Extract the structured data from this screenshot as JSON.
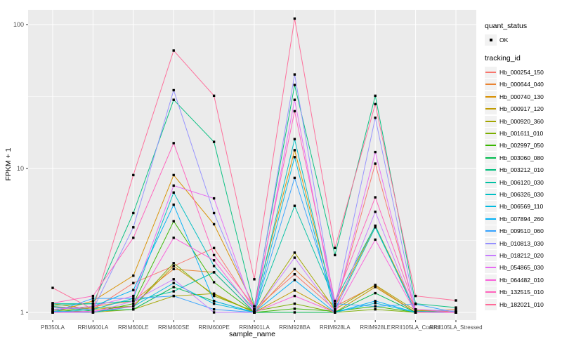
{
  "figure": {
    "background": "#FFFFFF",
    "panel_bg": "#EBEBEB",
    "grid_color": "#FFFFFF",
    "tick_label_color": "#4D4D4D",
    "point_color": "#000000",
    "legend_key_bg": "#F2F2F2"
  },
  "legend": {
    "quant_status_title": "quant_status",
    "ok_label": "OK",
    "tracking_title": "tracking_id"
  },
  "chart_data": {
    "type": "line",
    "title": "",
    "xlabel": "sample_name",
    "ylabel": "FPKM + 1",
    "y_scale": "log10",
    "ylim": [
      0.89,
      125
    ],
    "y_tick_values": [
      1,
      10,
      100
    ],
    "y_tick_labels": [
      "1",
      "10",
      "100"
    ],
    "y_minor_tick_values": [
      3.1623,
      31.623
    ],
    "grid": "on",
    "legend_position": "right",
    "point_marker": "black-square",
    "categories": [
      "PB350LA",
      "RRIM600LA",
      "RRIM600LE",
      "RRIM600SE",
      "RRIM600PE",
      "RRIM901LA",
      "RRIM928BA",
      "RRIM928LA",
      "RRIM928LE",
      "RRII105LA_Control",
      "RRII105LA_Stressed"
    ],
    "series": [
      {
        "name": "Hb_000254_150",
        "color": "#F8766D",
        "values": [
          1.1,
          1.05,
          1.6,
          2.1,
          2.8,
          1.05,
          1.84,
          1.05,
          10.8,
          1.02,
          1.0
        ]
      },
      {
        "name": "Hb_000644_040",
        "color": "#EA8331",
        "values": [
          1.05,
          1.1,
          1.2,
          2.0,
          1.9,
          1.0,
          2.0,
          1.1,
          1.53,
          1.0,
          1.05
        ]
      },
      {
        "name": "Hb_000740_130",
        "color": "#D89000",
        "values": [
          1.0,
          1.2,
          1.8,
          9.0,
          4.1,
          1.1,
          13.4,
          1.1,
          4.0,
          1.05,
          1.0
        ]
      },
      {
        "name": "Hb_000917_120",
        "color": "#C09B00",
        "values": [
          1.15,
          1.05,
          1.1,
          2.1,
          1.33,
          1.0,
          1.42,
          1.0,
          1.5,
          1.0,
          1.0
        ]
      },
      {
        "name": "Hb_000920_360",
        "color": "#A3A500",
        "values": [
          1.0,
          1.0,
          1.05,
          1.3,
          1.35,
          1.0,
          2.6,
          1.05,
          1.55,
          1.03,
          1.02
        ]
      },
      {
        "name": "Hb_001611_010",
        "color": "#7CAE00",
        "values": [
          1.02,
          1.08,
          1.1,
          2.2,
          1.3,
          1.02,
          1.15,
          1.0,
          1.05,
          1.0,
          1.0
        ]
      },
      {
        "name": "Hb_002997_050",
        "color": "#39B600",
        "values": [
          1.05,
          1.0,
          1.15,
          4.3,
          1.62,
          1.0,
          1.06,
          1.02,
          1.1,
          1.0,
          1.0
        ]
      },
      {
        "name": "Hb_003060_080",
        "color": "#00BB4E",
        "values": [
          1.1,
          1.02,
          1.05,
          1.5,
          1.2,
          1.0,
          1.0,
          1.0,
          1.36,
          1.0,
          1.0
        ]
      },
      {
        "name": "Hb_003212_010",
        "color": "#00BF7D",
        "values": [
          1.12,
          1.15,
          4.9,
          30.0,
          15.3,
          1.1,
          38.0,
          2.5,
          32.0,
          1.15,
          1.08
        ]
      },
      {
        "name": "Hb_006120_030",
        "color": "#00C1A3",
        "values": [
          1.15,
          1.15,
          1.2,
          1.4,
          1.9,
          1.0,
          5.5,
          1.2,
          4.0,
          1.0,
          1.0
        ]
      },
      {
        "name": "Hb_006326_030",
        "color": "#00BFC4",
        "values": [
          1.0,
          1.05,
          1.25,
          6.8,
          2.1,
          1.05,
          16.0,
          1.05,
          3.9,
          1.02,
          1.0
        ]
      },
      {
        "name": "Hb_006569_110",
        "color": "#00BAE0",
        "values": [
          1.02,
          1.0,
          1.1,
          1.6,
          1.15,
          1.0,
          12.0,
          1.0,
          1.16,
          1.0,
          1.0
        ]
      },
      {
        "name": "Hb_007894_260",
        "color": "#00B0F6",
        "values": [
          1.05,
          1.1,
          1.43,
          5.6,
          1.2,
          1.0,
          1.68,
          1.0,
          1.2,
          1.0,
          1.0
        ]
      },
      {
        "name": "Hb_009510_060",
        "color": "#35A2FF",
        "values": [
          1.0,
          1.25,
          1.25,
          1.3,
          1.05,
          1.0,
          8.6,
          1.15,
          1.1,
          1.14,
          1.0
        ]
      },
      {
        "name": "Hb_010813_030",
        "color": "#9590FF",
        "values": [
          1.08,
          1.05,
          3.9,
          35.0,
          4.9,
          1.05,
          45.0,
          1.1,
          22.5,
          1.05,
          1.02
        ]
      },
      {
        "name": "Hb_018212_020",
        "color": "#C77CFF",
        "values": [
          1.0,
          1.0,
          1.2,
          1.7,
          1.0,
          1.0,
          2.4,
          1.0,
          5.0,
          1.0,
          1.0
        ]
      },
      {
        "name": "Hb_054865_030",
        "color": "#E76BF3",
        "values": [
          1.05,
          1.1,
          1.3,
          7.6,
          6.2,
          1.0,
          30.0,
          1.05,
          13.0,
          1.0,
          1.0
        ]
      },
      {
        "name": "Hb_064482_010",
        "color": "#FA62DB",
        "values": [
          1.0,
          1.02,
          1.1,
          3.3,
          2.3,
          1.0,
          1.3,
          1.0,
          3.2,
          1.0,
          1.0
        ]
      },
      {
        "name": "Hb_132515_010",
        "color": "#FF62BC",
        "values": [
          1.16,
          1.3,
          3.3,
          15.0,
          2.5,
          1.1,
          25.0,
          1.2,
          6.3,
          1.05,
          1.0
        ]
      },
      {
        "name": "Hb_182021_010",
        "color": "#FF6A98",
        "values": [
          1.48,
          1.05,
          9.0,
          66.0,
          32.0,
          1.7,
          110,
          2.8,
          28.0,
          1.3,
          1.21
        ]
      }
    ]
  }
}
